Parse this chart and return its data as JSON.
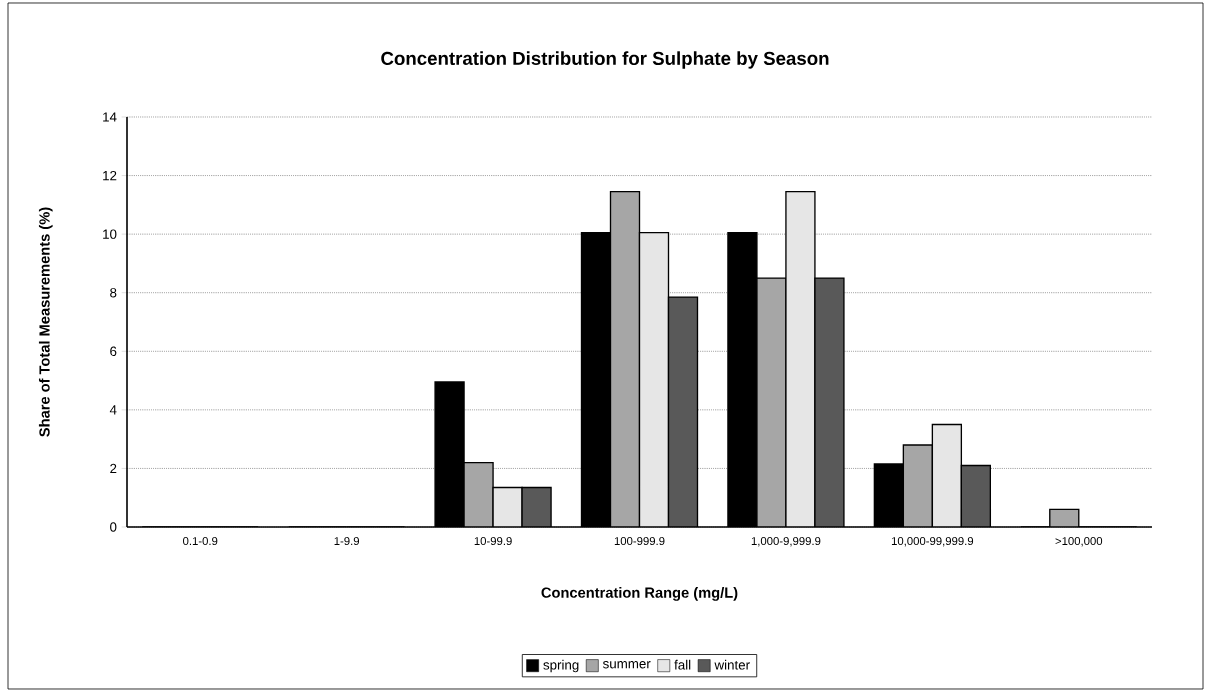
{
  "chart_data": {
    "type": "bar",
    "title": "Concentration Distribution for Sulphate by Season",
    "xlabel": "Concentration Range (mg/L)",
    "ylabel": "Share of Total Measurements (%)",
    "categories": [
      "0.1-0.9",
      "1-9.9",
      "10-99.9",
      "100-999.9",
      "1,000-9,999.9",
      "10,000-99,999.9",
      ">100,000"
    ],
    "series": [
      {
        "name": "spring",
        "color": "#000000",
        "values": [
          0,
          0,
          4.95,
          10.05,
          10.05,
          2.15,
          0
        ]
      },
      {
        "name": "summer",
        "color": "#a6a6a6",
        "values": [
          0,
          0,
          2.2,
          11.45,
          8.5,
          2.8,
          0.6
        ]
      },
      {
        "name": "fall",
        "color": "#e6e6e6",
        "values": [
          0,
          0,
          1.35,
          10.05,
          11.45,
          3.5,
          0
        ]
      },
      {
        "name": "winter",
        "color": "#595959",
        "values": [
          0,
          0,
          1.35,
          7.85,
          8.5,
          2.1,
          0
        ]
      }
    ],
    "ylim": [
      0,
      14
    ],
    "yticks": [
      0,
      2,
      4,
      6,
      8,
      10,
      12,
      14
    ],
    "grid": "y",
    "legend": "bottom"
  }
}
